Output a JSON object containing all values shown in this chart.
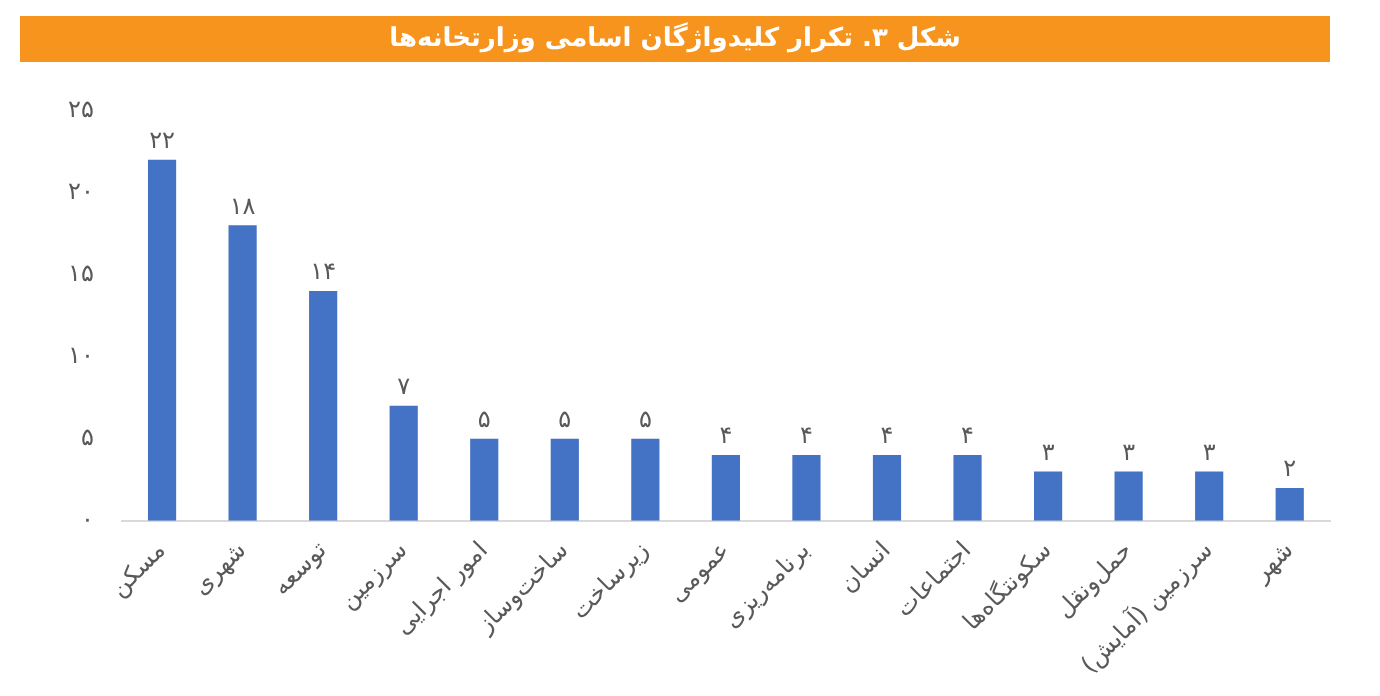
{
  "chart_data": {
    "type": "bar",
    "title": "شکل ۳. تکرار کلیدواژگان اسامی وزارتخانه‌ها",
    "categories": [
      "مسکن",
      "شهری",
      "توسعه",
      "سرزمین",
      "امور اجرایی",
      "ساخت‌وساز",
      "زیرساخت",
      "عمومی",
      "برنامه‌ریزی",
      "انسان",
      "اجتماعات",
      "سکونتگاه‌ها",
      "حمل‌ونقل",
      "سرزمین (آمایش)",
      "شهر"
    ],
    "values": [
      22,
      18,
      14,
      7,
      5,
      5,
      5,
      4,
      4,
      4,
      4,
      3,
      3,
      3,
      2
    ],
    "value_labels": [
      "۲۲",
      "۱۸",
      "۱۴",
      "۷",
      "۵",
      "۵",
      "۵",
      "۴",
      "۴",
      "۴",
      "۴",
      "۳",
      "۳",
      "۳",
      "۲"
    ],
    "color": "#4472c4",
    "ylim": [
      0,
      25
    ],
    "yticks": [
      {
        "value": 0,
        "label": "۰"
      },
      {
        "value": 5,
        "label": "۵"
      },
      {
        "value": 10,
        "label": "۱۰"
      },
      {
        "value": 15,
        "label": "۱۵"
      },
      {
        "value": 20,
        "label": "۲۰"
      },
      {
        "value": 25,
        "label": "۲۵"
      }
    ],
    "grid": false,
    "legend": false
  }
}
